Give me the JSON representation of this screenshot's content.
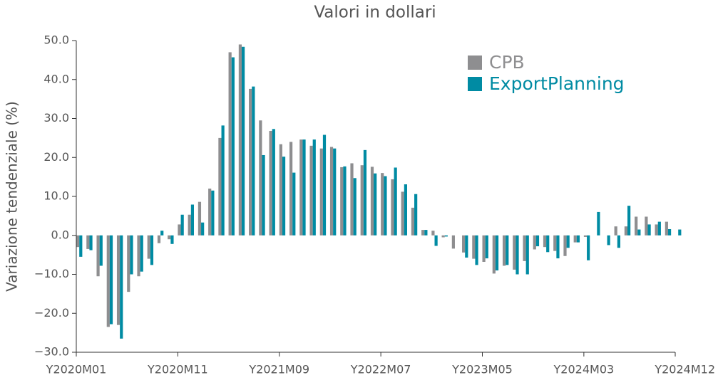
{
  "chart_data": {
    "type": "bar",
    "title": "Valori in dollari",
    "y_label": "Variazione tendenziale (%)",
    "categories": [
      "Y2020M01",
      null,
      null,
      null,
      null,
      null,
      null,
      null,
      null,
      null,
      "Y2020M11",
      null,
      null,
      null,
      null,
      null,
      null,
      null,
      null,
      null,
      "Y2021M09",
      null,
      null,
      null,
      null,
      null,
      null,
      null,
      null,
      null,
      "Y2022M07",
      null,
      null,
      null,
      null,
      null,
      null,
      null,
      null,
      null,
      "Y2023M05",
      null,
      null,
      null,
      null,
      null,
      null,
      null,
      null,
      null,
      "Y2024M03",
      null,
      null,
      null,
      null,
      null,
      null,
      null,
      null,
      "Y2024M12"
    ],
    "series": [
      {
        "name": "CPB",
        "color": "#8e8e90",
        "values": [
          -3,
          -3.5,
          -10.5,
          -23.5,
          -23,
          -14.5,
          -10.5,
          -6,
          -2,
          -1,
          2.8,
          5.3,
          8.6,
          12,
          25,
          47,
          49,
          37.6,
          29.5,
          26.8,
          23.4,
          24,
          24.6,
          23,
          22.3,
          22.7,
          17.5,
          18.5,
          18,
          17.6,
          16,
          14.4,
          11.2,
          7.1,
          1.4,
          1.2,
          -0.5,
          -3.4,
          -4.4,
          -6,
          -6.8,
          -9.8,
          -7.8,
          -8.8,
          -6.6,
          -3.6,
          -3,
          -4,
          -5.3,
          -1.8,
          -0.4,
          0,
          0,
          2.3,
          2.3,
          4.8,
          4.8,
          2.8,
          3.5,
          null
        ]
      },
      {
        "name": "ExportPlanning",
        "color": "#008ba3",
        "values": [
          -5.5,
          -3.8,
          -7.8,
          -22.8,
          -26.5,
          -10,
          -9.3,
          -7.6,
          1.2,
          -2.2,
          5.3,
          7.9,
          3.3,
          11.5,
          28.2,
          45.7,
          48.4,
          38.2,
          20.6,
          27.3,
          20.2,
          16.1,
          24.6,
          24.6,
          25.8,
          22.3,
          17.7,
          14.7,
          21.9,
          15.9,
          15.2,
          17.4,
          13.1,
          10.6,
          1.4,
          -2.7,
          -0.3,
          0,
          -5.7,
          -7.6,
          -5.9,
          -9,
          -7.6,
          -10,
          -10,
          -2.8,
          -4.3,
          -5.9,
          -3.2,
          -1.8,
          -6.4,
          6,
          -2.5,
          -3.2,
          7.6,
          1.5,
          2.8,
          3.5,
          1.6,
          1.5
        ]
      }
    ],
    "ylim": [
      -30,
      50
    ],
    "yticks": [
      {
        "value": -30,
        "label": "−30.0"
      },
      {
        "value": -20,
        "label": "−20.0"
      },
      {
        "value": -10,
        "label": "−10.0"
      },
      {
        "value": 0,
        "label": "0.0"
      },
      {
        "value": 10,
        "label": "10.0"
      },
      {
        "value": 20,
        "label": "20.0"
      },
      {
        "value": 30,
        "label": "30.0"
      },
      {
        "value": 40,
        "label": "40.0"
      },
      {
        "value": 50,
        "label": "50.0"
      }
    ],
    "legend": "upper right"
  }
}
